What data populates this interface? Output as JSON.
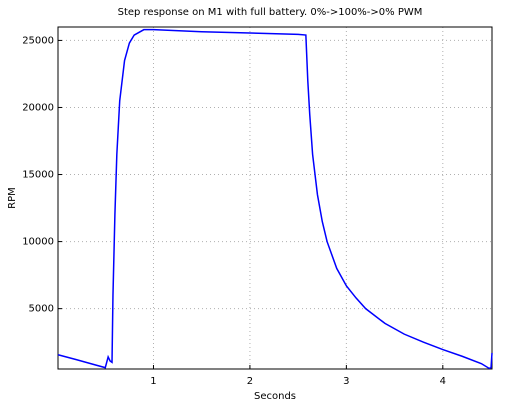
{
  "chart_data": {
    "type": "line",
    "title": "Step response on M1 with full battery. 0%->100%->0% PWM",
    "x_label": "Seconds",
    "y_label": "RPM",
    "x": [
      0.01,
      0.2,
      0.4,
      0.5,
      0.53,
      0.55,
      0.57,
      0.58,
      0.6,
      0.62,
      0.65,
      0.7,
      0.75,
      0.8,
      0.9,
      1.0,
      1.5,
      2.0,
      2.5,
      2.58,
      2.6,
      2.62,
      2.65,
      2.7,
      2.75,
      2.8,
      2.9,
      3.0,
      3.1,
      3.2,
      3.4,
      3.6,
      3.8,
      4.0,
      4.2,
      4.4,
      4.48,
      4.5,
      4.51
    ],
    "values": [
      1560,
      1200,
      800,
      600,
      1400,
      1100,
      1000,
      6000,
      12000,
      16500,
      20500,
      23500,
      24800,
      25400,
      25800,
      25800,
      25650,
      25550,
      25450,
      25400,
      22000,
      19500,
      16500,
      13500,
      11500,
      10000,
      8000,
      6700,
      5800,
      5000,
      3900,
      3100,
      2500,
      1950,
      1450,
      900,
      550,
      600,
      1700
    ],
    "color": "#0000ff",
    "xlim": [
      0.01,
      4.51
    ],
    "ylim": [
      500,
      26000
    ],
    "xticks": [
      1,
      2,
      3,
      4
    ],
    "yticks": [
      5000,
      10000,
      15000,
      20000,
      25000
    ],
    "grid": true
  }
}
